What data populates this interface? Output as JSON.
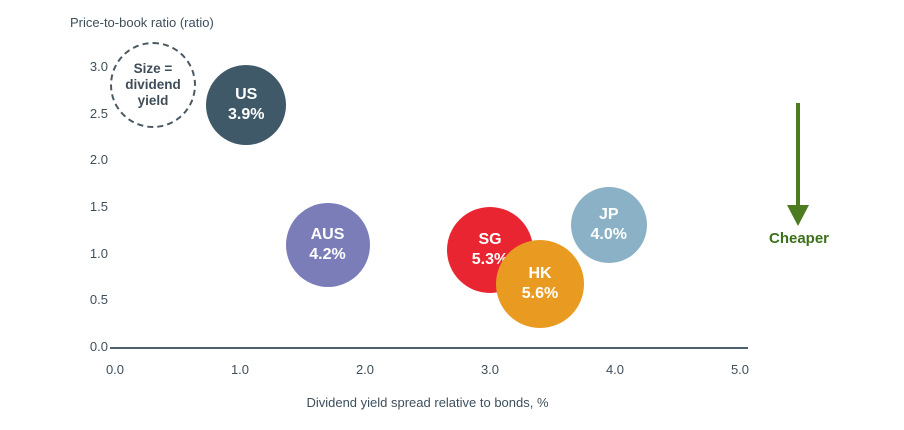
{
  "chart_data": {
    "type": "scatter",
    "subtype": "bubble",
    "title": "",
    "ylabel": "Price-to-book ratio (ratio)",
    "xlabel": "Dividend yield spread relative to bonds, %",
    "xlim": [
      0,
      5
    ],
    "ylim": [
      0,
      3
    ],
    "x_ticks": [
      "0.0",
      "1.0",
      "2.0",
      "3.0",
      "4.0",
      "5.0"
    ],
    "y_ticks": [
      "0.0",
      "0.5",
      "1.0",
      "1.5",
      "2.0",
      "2.5",
      "3.0"
    ],
    "grid": "off",
    "size_encoding": "dividend yield",
    "points": [
      {
        "label": "US",
        "dividend_yield": "3.9%",
        "x": 1.05,
        "y": 2.6,
        "color": "#3f5968",
        "radius_px": 40
      },
      {
        "label": "AUS",
        "dividend_yield": "4.2%",
        "x": 1.7,
        "y": 1.1,
        "color": "#7b7db8",
        "radius_px": 42
      },
      {
        "label": "SG",
        "dividend_yield": "5.3%",
        "x": 3.0,
        "y": 1.05,
        "color": "#e92531",
        "radius_px": 43
      },
      {
        "label": "JP",
        "dividend_yield": "4.0%",
        "x": 3.95,
        "y": 1.32,
        "color": "#8ab1c5",
        "radius_px": 38
      },
      {
        "label": "HK",
        "dividend_yield": "5.6%",
        "x": 3.4,
        "y": 0.69,
        "color": "#e89a21",
        "radius_px": 44
      }
    ]
  },
  "legend": {
    "text": "Size = dividend yield"
  },
  "annotations": {
    "cheaper_label": "Cheaper"
  },
  "colors": {
    "axis_text": "#3e4f5c",
    "axis_line": "#50616e",
    "arrow_green": "#4d7b1f",
    "cheaper_text": "#3c701a",
    "legend_border": "#4b5962",
    "legend_text": "#3f4d58",
    "bubble_text": "#ffffff"
  }
}
